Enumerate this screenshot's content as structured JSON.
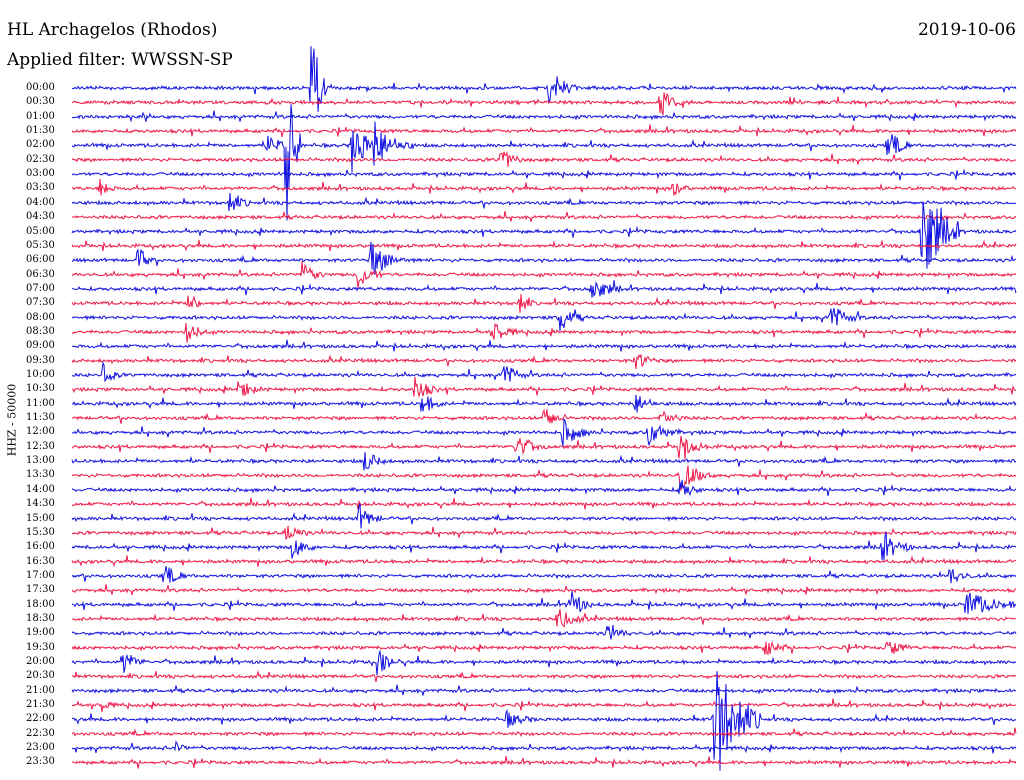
{
  "header": {
    "station": "HL Archagelos (Rhodos)",
    "date": "2019-10-06",
    "filter": "Applied filter: WWSSN-SP"
  },
  "colors": {
    "even": "#1010e0",
    "odd": "#ee1848"
  },
  "chart_data": {
    "type": "helicorder",
    "ylabel": "HHZ - 50000",
    "trace_labels": [
      "00:00",
      "00:30",
      "01:00",
      "01:30",
      "02:00",
      "02:30",
      "03:00",
      "03:30",
      "04:00",
      "04:30",
      "05:00",
      "05:30",
      "06:00",
      "06:30",
      "07:00",
      "07:30",
      "08:00",
      "08:30",
      "09:00",
      "09:30",
      "10:00",
      "10:30",
      "11:00",
      "11:30",
      "12:00",
      "12:30",
      "13:00",
      "13:30",
      "14:00",
      "14:30",
      "15:00",
      "15:30",
      "16:00",
      "16:30",
      "17:00",
      "17:30",
      "18:00",
      "18:30",
      "19:00",
      "19:30",
      "20:00",
      "20:30",
      "21:00",
      "21:30",
      "22:00",
      "22:30",
      "23:00",
      "23:30"
    ],
    "trace_minutes": 30,
    "events": [
      {
        "row": 0,
        "min": 7.6,
        "amp": 90,
        "dur": 0.2
      },
      {
        "row": 0,
        "min": 15.1,
        "amp": 22,
        "dur": 0.4
      },
      {
        "row": 1,
        "min": 18.7,
        "amp": 14,
        "dur": 0.3
      },
      {
        "row": 4,
        "min": 6.2,
        "amp": 12,
        "dur": 0.3
      },
      {
        "row": 4,
        "min": 6.8,
        "amp": 110,
        "dur": 0.2
      },
      {
        "row": 4,
        "min": 8.9,
        "amp": 28,
        "dur": 0.4
      },
      {
        "row": 4,
        "min": 9.6,
        "amp": 22,
        "dur": 0.5
      },
      {
        "row": 4,
        "min": 25.9,
        "amp": 18,
        "dur": 0.3
      },
      {
        "row": 5,
        "min": 13.6,
        "amp": 14,
        "dur": 0.3
      },
      {
        "row": 7,
        "min": 0.9,
        "amp": 10,
        "dur": 0.2
      },
      {
        "row": 7,
        "min": 19.1,
        "amp": 10,
        "dur": 0.2
      },
      {
        "row": 8,
        "min": 5.0,
        "amp": 10,
        "dur": 0.3
      },
      {
        "row": 10,
        "min": 27.0,
        "amp": 60,
        "dur": 0.5
      },
      {
        "row": 12,
        "min": 2.1,
        "amp": 16,
        "dur": 0.2
      },
      {
        "row": 12,
        "min": 9.5,
        "amp": 18,
        "dur": 0.5
      },
      {
        "row": 13,
        "min": 7.3,
        "amp": 12,
        "dur": 0.3
      },
      {
        "row": 13,
        "min": 9.1,
        "amp": 16,
        "dur": 0.3
      },
      {
        "row": 14,
        "min": 16.5,
        "amp": 14,
        "dur": 0.4
      },
      {
        "row": 15,
        "min": 3.7,
        "amp": 12,
        "dur": 0.2
      },
      {
        "row": 15,
        "min": 14.2,
        "amp": 12,
        "dur": 0.2
      },
      {
        "row": 16,
        "min": 15.5,
        "amp": 16,
        "dur": 0.3
      },
      {
        "row": 16,
        "min": 24.1,
        "amp": 14,
        "dur": 0.4
      },
      {
        "row": 17,
        "min": 3.6,
        "amp": 12,
        "dur": 0.3
      },
      {
        "row": 17,
        "min": 13.4,
        "amp": 12,
        "dur": 0.3
      },
      {
        "row": 19,
        "min": 17.9,
        "amp": 10,
        "dur": 0.3
      },
      {
        "row": 20,
        "min": 1.0,
        "amp": 14,
        "dur": 0.2
      },
      {
        "row": 20,
        "min": 13.7,
        "amp": 14,
        "dur": 0.3
      },
      {
        "row": 21,
        "min": 5.3,
        "amp": 12,
        "dur": 0.3
      },
      {
        "row": 21,
        "min": 10.9,
        "amp": 14,
        "dur": 0.3
      },
      {
        "row": 22,
        "min": 11.1,
        "amp": 12,
        "dur": 0.3
      },
      {
        "row": 22,
        "min": 17.9,
        "amp": 12,
        "dur": 0.3
      },
      {
        "row": 23,
        "min": 15.0,
        "amp": 12,
        "dur": 0.3
      },
      {
        "row": 23,
        "min": 18.7,
        "amp": 10,
        "dur": 0.3
      },
      {
        "row": 24,
        "min": 15.6,
        "amp": 14,
        "dur": 0.4
      },
      {
        "row": 24,
        "min": 18.3,
        "amp": 14,
        "dur": 0.4
      },
      {
        "row": 25,
        "min": 14.1,
        "amp": 12,
        "dur": 0.4
      },
      {
        "row": 25,
        "min": 19.3,
        "amp": 14,
        "dur": 0.4
      },
      {
        "row": 26,
        "min": 9.3,
        "amp": 12,
        "dur": 0.3
      },
      {
        "row": 27,
        "min": 19.3,
        "amp": 18,
        "dur": 0.4
      },
      {
        "row": 28,
        "min": 19.3,
        "amp": 12,
        "dur": 0.3
      },
      {
        "row": 30,
        "min": 9.1,
        "amp": 16,
        "dur": 0.3
      },
      {
        "row": 31,
        "min": 6.8,
        "amp": 10,
        "dur": 0.3
      },
      {
        "row": 32,
        "min": 7.0,
        "amp": 12,
        "dur": 0.3
      },
      {
        "row": 32,
        "min": 25.7,
        "amp": 16,
        "dur": 0.4
      },
      {
        "row": 34,
        "min": 2.9,
        "amp": 12,
        "dur": 0.3
      },
      {
        "row": 34,
        "min": 27.9,
        "amp": 10,
        "dur": 0.3
      },
      {
        "row": 36,
        "min": 15.8,
        "amp": 18,
        "dur": 0.3
      },
      {
        "row": 36,
        "min": 28.4,
        "amp": 14,
        "dur": 0.7
      },
      {
        "row": 37,
        "min": 15.4,
        "amp": 12,
        "dur": 0.4
      },
      {
        "row": 38,
        "min": 17.0,
        "amp": 10,
        "dur": 0.3
      },
      {
        "row": 39,
        "min": 22.0,
        "amp": 10,
        "dur": 0.3
      },
      {
        "row": 39,
        "min": 25.9,
        "amp": 10,
        "dur": 0.3
      },
      {
        "row": 40,
        "min": 1.6,
        "amp": 14,
        "dur": 0.3
      },
      {
        "row": 40,
        "min": 9.7,
        "amp": 14,
        "dur": 0.3
      },
      {
        "row": 43,
        "min": 0.9,
        "amp": 8,
        "dur": 0.2
      },
      {
        "row": 44,
        "min": 20.4,
        "amp": 70,
        "dur": 0.6
      },
      {
        "row": 44,
        "min": 13.8,
        "amp": 8,
        "dur": 0.4
      },
      {
        "row": 46,
        "min": 3.3,
        "amp": 6,
        "dur": 0.2
      }
    ]
  }
}
